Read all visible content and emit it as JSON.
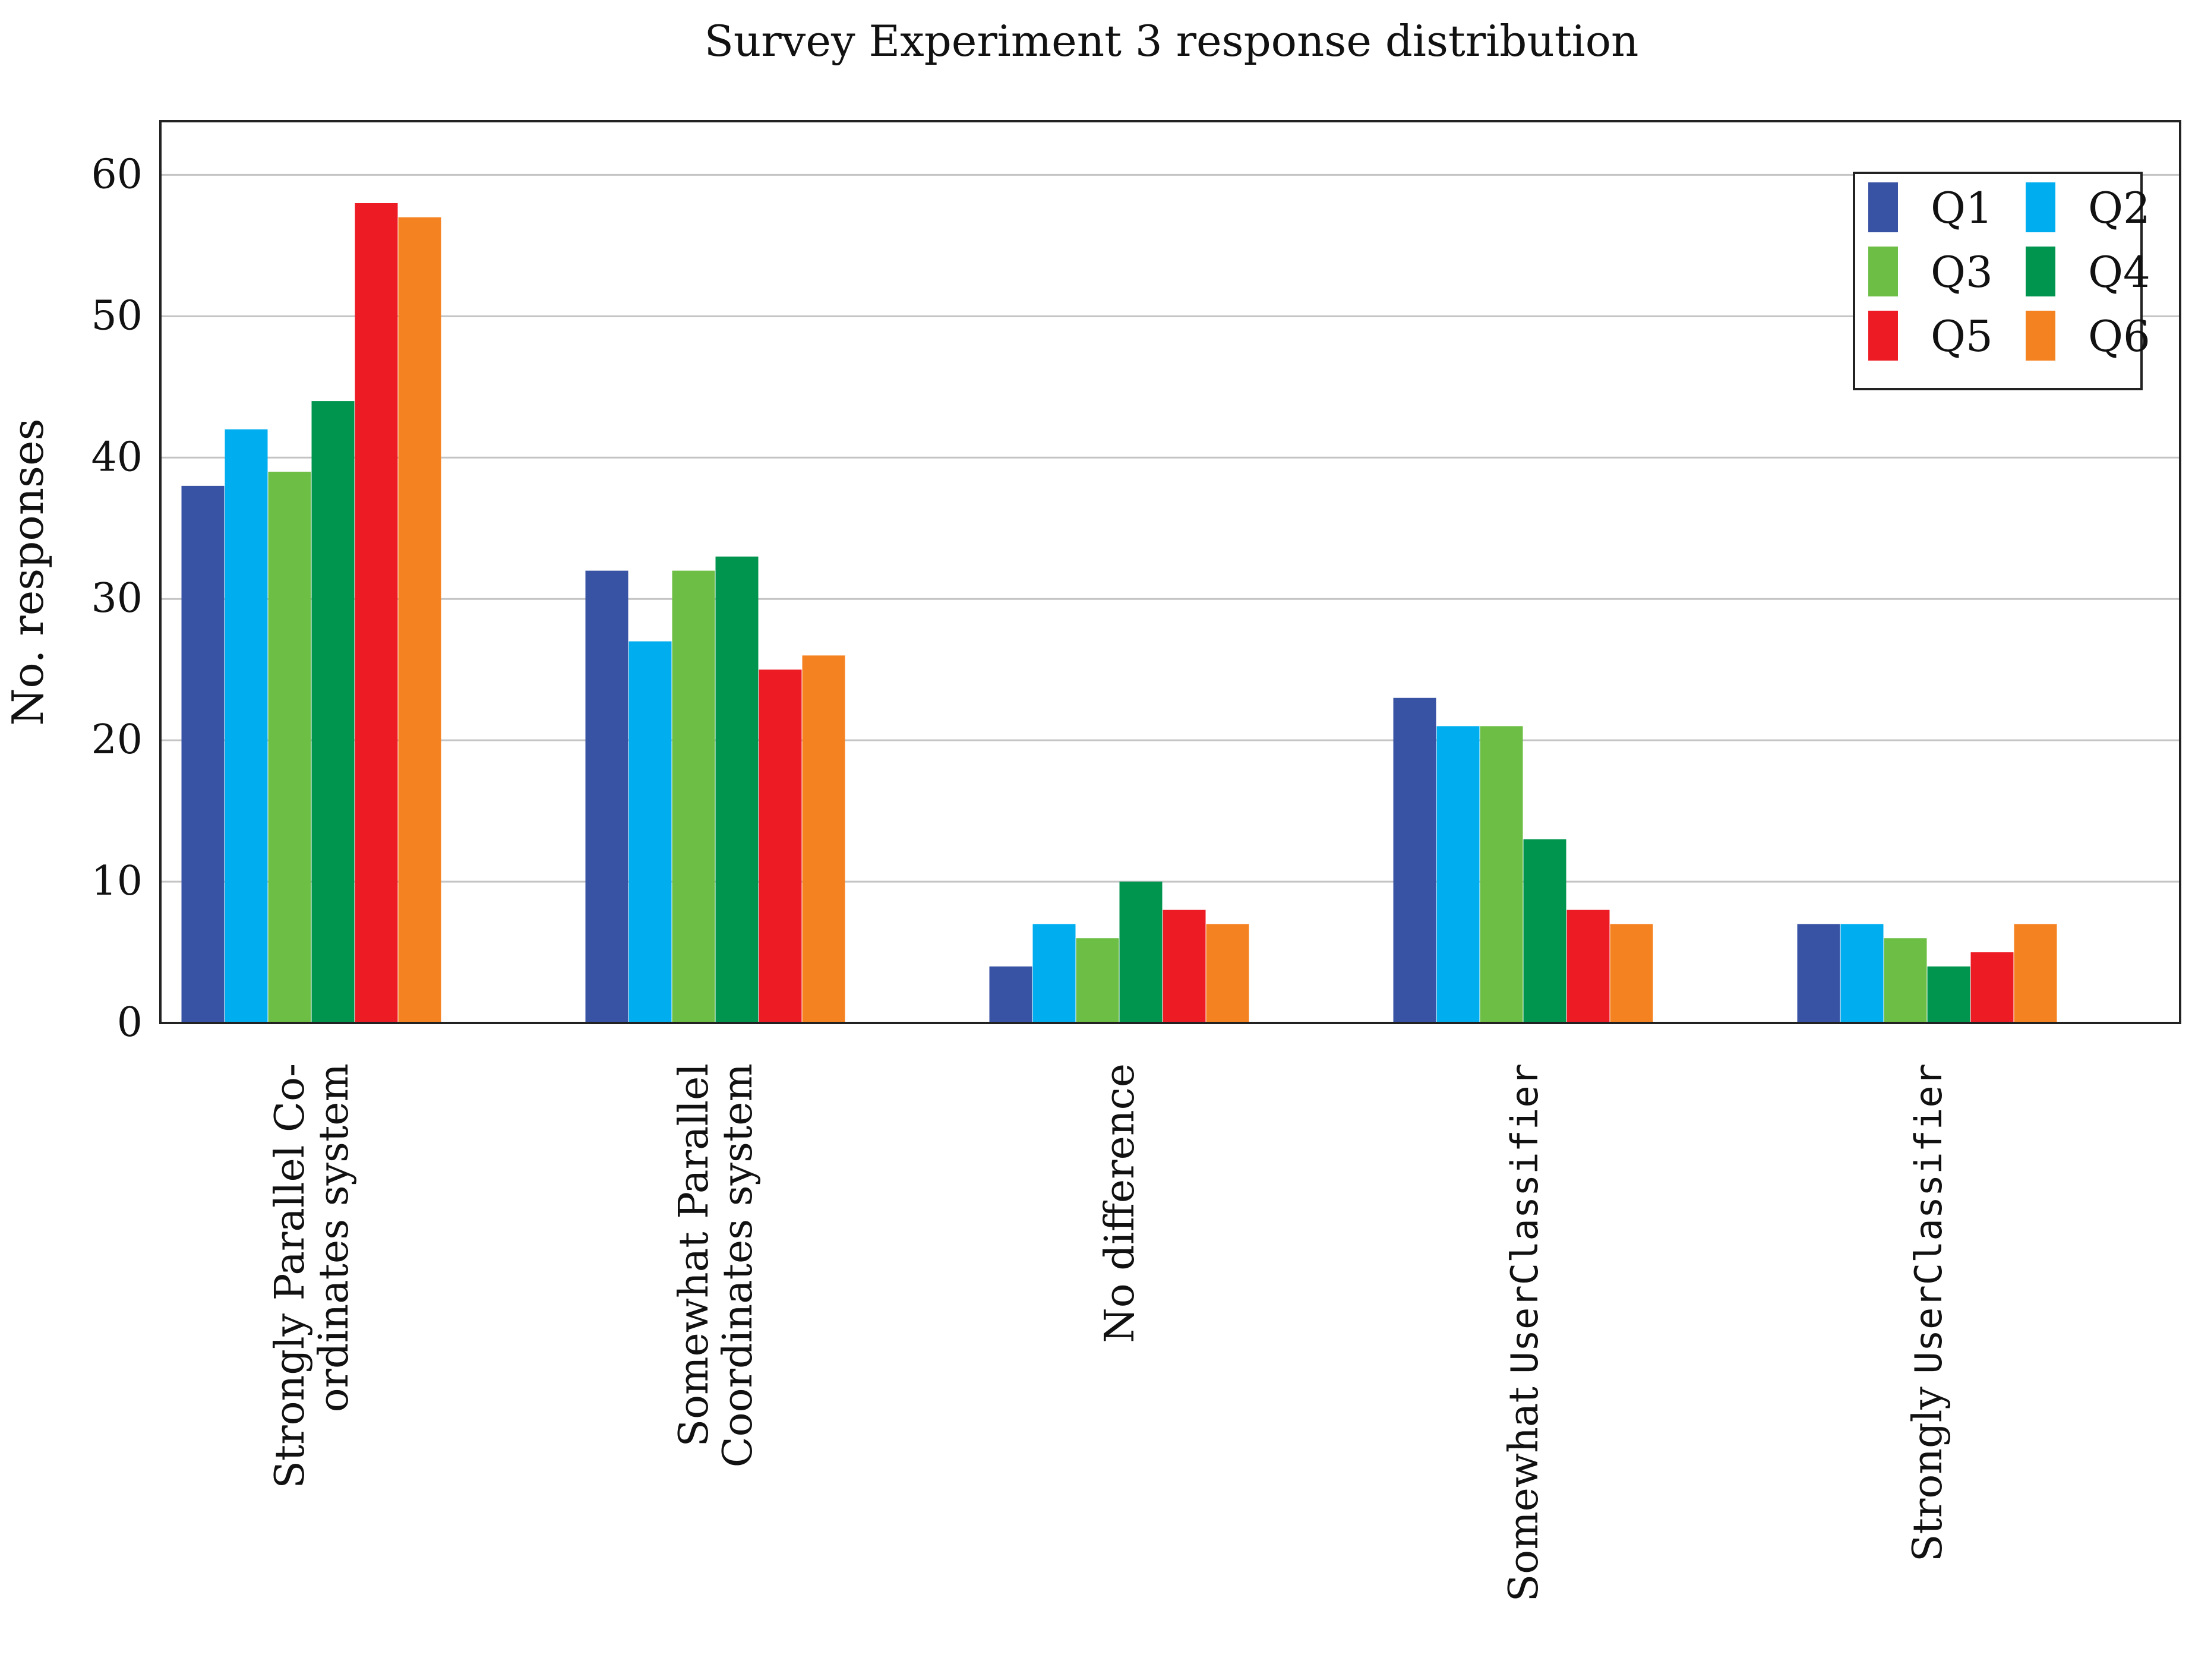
{
  "chart_data": {
    "type": "bar",
    "title": "Survey Experiment 3 response distribution",
    "xlabel": "",
    "ylabel": "No. responses",
    "ylim": [
      0,
      63.8
    ],
    "yticks": [
      0,
      10,
      20,
      30,
      40,
      50,
      60
    ],
    "grid": true,
    "legend_position": "top-right",
    "categories": [
      "Strongly Parallel Co-ordinates system",
      "Somewhat Parallel Coordinates system",
      "No difference",
      "Somewhat UserClassifier",
      "Strongly UserClassifier"
    ],
    "category_label_lines": [
      [
        [
          {
            "text": "Strongly Parallel Co-",
            "mono": false
          }
        ],
        [
          {
            "text": "ordinates system",
            "mono": false
          }
        ]
      ],
      [
        [
          {
            "text": "Somewhat Parallel",
            "mono": false
          }
        ],
        [
          {
            "text": "Coordinates system",
            "mono": false
          }
        ]
      ],
      [
        [
          {
            "text": "No difference",
            "mono": false
          }
        ]
      ],
      [
        [
          {
            "text": "Somewhat ",
            "mono": false
          },
          {
            "text": "UserClassifier",
            "mono": true
          }
        ]
      ],
      [
        [
          {
            "text": "Strongly ",
            "mono": false
          },
          {
            "text": "UserClassifier",
            "mono": true
          }
        ]
      ]
    ],
    "series": [
      {
        "name": "Q1",
        "color": "#3953a4",
        "values": [
          38,
          32,
          4,
          23,
          7
        ]
      },
      {
        "name": "Q2",
        "color": "#00aeef",
        "values": [
          42,
          27,
          7,
          21,
          7
        ]
      },
      {
        "name": "Q3",
        "color": "#6dbe45",
        "values": [
          39,
          32,
          6,
          21,
          6
        ]
      },
      {
        "name": "Q4",
        "color": "#00954f",
        "values": [
          44,
          33,
          10,
          13,
          4
        ]
      },
      {
        "name": "Q5",
        "color": "#ed1c24",
        "values": [
          58,
          25,
          8,
          8,
          5
        ]
      },
      {
        "name": "Q6",
        "color": "#f58220",
        "values": [
          57,
          26,
          7,
          7,
          7
        ]
      }
    ]
  }
}
